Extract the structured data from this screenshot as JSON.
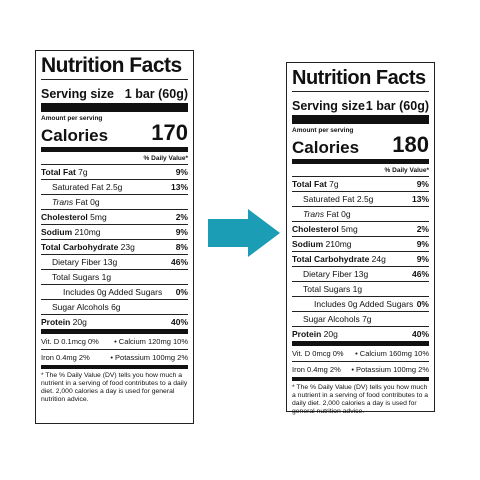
{
  "left": {
    "title": "Nutrition Facts",
    "serving_label": "Serving size",
    "serving_value": "1 bar (60g)",
    "amount_per_serving": "Amount per serving",
    "calories_label": "Calories",
    "calories_value": "170",
    "dv_header": "% Daily Value*",
    "total_fat_label": "Total Fat",
    "total_fat_amount": "7g",
    "total_fat_pct": "9%",
    "sat_fat_label": "Saturated Fat 2.5g",
    "sat_fat_pct": "13%",
    "trans_label": "Trans",
    "trans_rest": " Fat 0g",
    "chol_label": "Cholesterol",
    "chol_amount": "5mg",
    "chol_pct": "2%",
    "sodium_label": "Sodium",
    "sodium_amount": "210mg",
    "sodium_pct": "9%",
    "carb_label": "Total Carbohydrate",
    "carb_amount": "23g",
    "carb_pct": "8%",
    "fiber_label": "Dietary Fiber 13g",
    "fiber_pct": "46%",
    "sugars_label": "Total Sugars 1g",
    "added_sugars_label": "Includes 0g Added Sugars",
    "added_sugars_pct": "0%",
    "sugar_alc_label": "Sugar Alcohols 6g",
    "protein_label": "Protein",
    "protein_amount": "20g",
    "protein_pct": "40%",
    "vit_d": "Vit. D 0.1mcg 0%",
    "calcium": "• Calcium 120mg 10%",
    "iron": "Iron 0.4mg 2%",
    "potassium": "• Potassium 100mg 2%",
    "footnote": "* The % Daily Value (DV) tells you how much a nutrient in a serving of food contributes to a daily diet. 2,000 calories a day is used for general nutrition advice."
  },
  "right": {
    "title": "Nutrition Facts",
    "serving_label": "Serving size",
    "serving_value": "1 bar (60g)",
    "amount_per_serving": "Amount per serving",
    "calories_label": "Calories",
    "calories_value": "180",
    "dv_header": "% Daily Value*",
    "total_fat_label": "Total Fat",
    "total_fat_amount": "7g",
    "total_fat_pct": "9%",
    "sat_fat_label": "Saturated Fat 2.5g",
    "sat_fat_pct": "13%",
    "trans_label": "Trans",
    "trans_rest": " Fat 0g",
    "chol_label": "Cholesterol",
    "chol_amount": "5mg",
    "chol_pct": "2%",
    "sodium_label": "Sodium",
    "sodium_amount": "210mg",
    "sodium_pct": "9%",
    "carb_label": "Total Carbohydrate",
    "carb_amount": "24g",
    "carb_pct": "9%",
    "fiber_label": "Dietary Fiber 13g",
    "fiber_pct": "46%",
    "sugars_label": "Total Sugars 1g",
    "added_sugars_label": "Includes 0g Added Sugars",
    "added_sugars_pct": "0%",
    "sugar_alc_label": "Sugar Alcohols 7g",
    "protein_label": "Protein",
    "protein_amount": "20g",
    "protein_pct": "40%",
    "vit_d": "Vit. D 0mcg 0%",
    "calcium": "• Calcium 160mg 10%",
    "iron": "Iron 0.4mg 2%",
    "potassium": "• Potassium 100mg 2%",
    "footnote": "* The % Daily Value (DV) tells you how much a nutrient in a serving of food contributes to a daily diet. 2,000 calories a day is used for general nutrition advice."
  },
  "arrow": {
    "icon": "right-arrow-icon",
    "color": "#1a9db5"
  }
}
